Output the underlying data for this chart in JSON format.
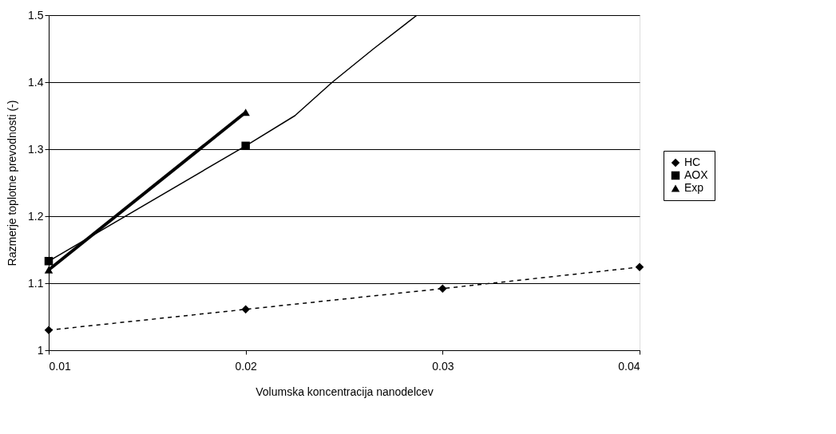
{
  "chart_data": {
    "type": "line",
    "xlabel": "Volumska koncentracija nanodelcev",
    "ylabel": "Razmerje toplotne prevodnosti (-)",
    "xlim": [
      0.01,
      0.04
    ],
    "xticks": [
      0.01,
      0.02,
      0.03,
      0.04
    ],
    "ylim": [
      1,
      1.5
    ],
    "yticks": [
      1,
      1.1,
      1.2,
      1.3,
      1.4,
      1.5
    ],
    "grid": "y",
    "legend": "right",
    "series": [
      {
        "name": "HC",
        "color": "#000000",
        "x": [
          0.01,
          0.02,
          0.03,
          0.04
        ],
        "values": [
          1.03,
          1.061,
          1.092,
          1.124
        ],
        "marker": "diamond",
        "line_style": "dashed"
      },
      {
        "name": "AOX",
        "color": "#000000",
        "x": [
          0.01,
          0.02
        ],
        "values": [
          1.133,
          1.305
        ],
        "marker": "square",
        "line_style": "solid"
      },
      {
        "color": "#000000",
        "x": [
          0.02,
          0.0225,
          0.0244,
          0.0265,
          0.0287
        ],
        "values": [
          1.305,
          1.35,
          1.4,
          1.45,
          1.5
        ],
        "marker": "none",
        "line_style": "solid"
      },
      {
        "name": "Exp",
        "color": "#000000",
        "x": [
          0.01,
          0.02
        ],
        "values": [
          1.12,
          1.355
        ],
        "marker": "triangle",
        "line_style": "solid"
      }
    ]
  }
}
